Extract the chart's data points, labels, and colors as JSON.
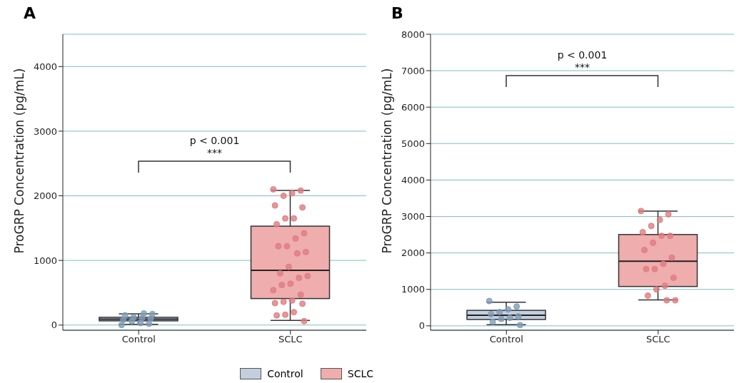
{
  "chart_data": [
    {
      "type": "box",
      "title": "A",
      "ylabel": "ProGRP Concentration (pg/mL)",
      "categories": [
        "Control",
        "SCLC"
      ],
      "series": [
        {
          "name": "Control",
          "type": "box",
          "color": "#c3cfdf",
          "boxes": [
            {
              "low": 10,
              "q1": 65,
              "median": 90,
              "q3": 120,
              "high": 175
            },
            null
          ]
        },
        {
          "name": "SCLC",
          "type": "box",
          "color": "#efadad",
          "boxes": [
            null,
            {
              "low": 72,
              "q1": 410,
              "median": 848,
              "q3": 1530,
              "high": 2084
            }
          ]
        },
        {
          "type": "scatter",
          "color": "#7f9cb8",
          "x": [
            "Control",
            "Control",
            "Control",
            "Control",
            "Control",
            "Control",
            "Control",
            "Control",
            "Control",
            "Control",
            "Control"
          ],
          "values": [
            0,
            20,
            30,
            60,
            80,
            100,
            110,
            120,
            150,
            170,
            180
          ]
        },
        {
          "type": "scatter",
          "color": "#e07c80",
          "x": [
            "SCLC",
            "SCLC",
            "SCLC",
            "SCLC",
            "SCLC",
            "SCLC",
            "SCLC",
            "SCLC",
            "SCLC",
            "SCLC",
            "SCLC",
            "SCLC",
            "SCLC",
            "SCLC",
            "SCLC",
            "SCLC",
            "SCLC",
            "SCLC",
            "SCLC",
            "SCLC",
            "SCLC",
            "SCLC",
            "SCLC",
            "SCLC",
            "SCLC",
            "SCLC",
            "SCLC",
            "SCLC",
            "SCLC",
            "SCLC",
            "SCLC"
          ],
          "values": [
            2100,
            2080,
            2040,
            2000,
            1850,
            1820,
            1650,
            1650,
            1560,
            1420,
            1340,
            1220,
            1220,
            1130,
            1110,
            900,
            800,
            760,
            730,
            640,
            620,
            540,
            470,
            380,
            360,
            340,
            330,
            200,
            160,
            150,
            60
          ]
        }
      ],
      "ylim": [
        -80,
        4500
      ],
      "yticks": [
        0,
        1000,
        2000,
        3000,
        4000
      ],
      "grid": "y",
      "legend": "bottom",
      "annotations": [
        "p < 0.001",
        "***"
      ]
    },
    {
      "type": "box",
      "title": "B",
      "ylabel": "ProGRP Concentration (pg/mL)",
      "categories": [
        "Control",
        "SCLC"
      ],
      "series": [
        {
          "type": "box",
          "color": "#c3cfdf",
          "boxes": [
            {
              "low": 30,
              "q1": 175,
              "median": 290,
              "q3": 425,
              "high": 650
            },
            null
          ]
        },
        {
          "type": "box",
          "color": "#efadad",
          "boxes": [
            null,
            {
              "low": 710,
              "q1": 1080,
              "median": 1775,
              "q3": 2505,
              "high": 3150
            }
          ]
        },
        {
          "type": "scatter",
          "color": "#7f9cb8",
          "x": [
            "Control",
            "Control",
            "Control",
            "Control",
            "Control",
            "Control",
            "Control",
            "Control",
            "Control",
            "Control"
          ],
          "values": [
            680,
            530,
            450,
            380,
            320,
            260,
            220,
            190,
            110,
            20
          ]
        },
        {
          "type": "scatter",
          "color": "#e07c80",
          "x": [
            "SCLC",
            "SCLC",
            "SCLC",
            "SCLC",
            "SCLC",
            "SCLC",
            "SCLC",
            "SCLC",
            "SCLC",
            "SCLC",
            "SCLC",
            "SCLC",
            "SCLC",
            "SCLC",
            "SCLC",
            "SCLC",
            "SCLC",
            "SCLC",
            "SCLC"
          ],
          "values": [
            3150,
            3060,
            2910,
            2740,
            2570,
            2470,
            2470,
            2280,
            2080,
            1870,
            1700,
            1560,
            1560,
            1320,
            1100,
            1000,
            830,
            700,
            700
          ]
        }
      ],
      "ylim": [
        -120,
        8000
      ],
      "yticks": [
        0,
        1000,
        2000,
        3000,
        4000,
        5000,
        6000,
        7000,
        8000
      ],
      "grid": "y",
      "annotations": [
        "p < 0.001",
        "***"
      ]
    }
  ]
}
